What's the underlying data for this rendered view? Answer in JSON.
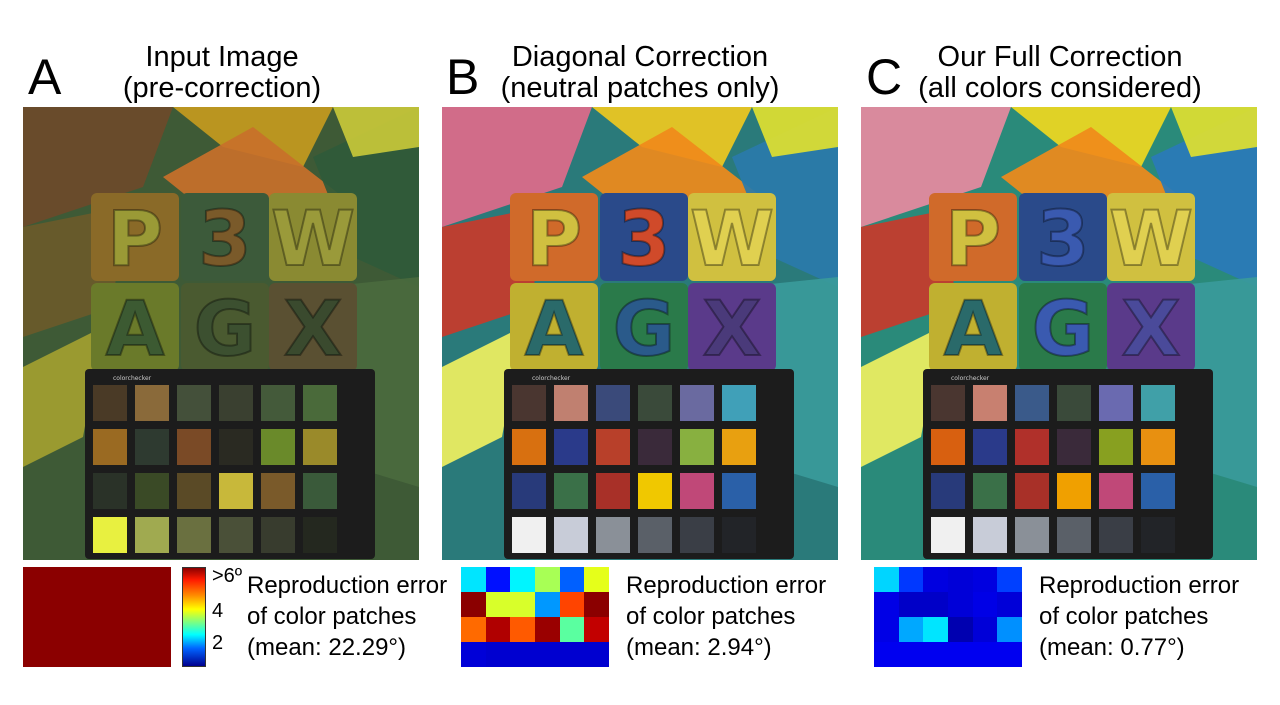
{
  "panels": [
    {
      "letter": "A",
      "title_line1": "Input Image",
      "title_line2": "(pre-correction)",
      "caption_line1": "Reproduction error",
      "caption_line2": "of color patches",
      "caption_line3": "(mean: 22.29°)",
      "error_cells": [
        "#8b0000",
        "#8b0000",
        "#8b0000",
        "#8b0000",
        "#8b0000",
        "#8b0000",
        "#8b0000",
        "#8b0000",
        "#8b0000",
        "#8b0000",
        "#8b0000",
        "#8b0000",
        "#8b0000",
        "#8b0000",
        "#8b0000",
        "#8b0000",
        "#8b0000",
        "#8b0000",
        "#8b0000",
        "#8b0000",
        "#8b0000",
        "#8b0000",
        "#8b0000",
        "#8b0000"
      ]
    },
    {
      "letter": "B",
      "title_line1": "Diagonal Correction",
      "title_line2": "(neutral patches only)",
      "caption_line1": "Reproduction error",
      "caption_line2": "of color patches",
      "caption_line3": "(mean: 2.94°)",
      "error_cells": [
        "#00e5ff",
        "#0010ff",
        "#00f5ff",
        "#a8ff55",
        "#0060ff",
        "#e5ff1a",
        "#8b0000",
        "#d8ff2a",
        "#d8ff2a",
        "#0098ff",
        "#ff4400",
        "#8b0000",
        "#ff6a00",
        "#b00000",
        "#ff5a00",
        "#9a0000",
        "#5affa0",
        "#c20000",
        "#0000d8",
        "#0000d0",
        "#0000d0",
        "#0000d0",
        "#0000d0",
        "#0000d0"
      ]
    },
    {
      "letter": "C",
      "title_line1": "Our Full Correction",
      "title_line2": "(all colors considered)",
      "caption_line1": "Reproduction error",
      "caption_line2": "of color patches",
      "caption_line3": "(mean: 0.77°)",
      "error_cells": [
        "#00d5ff",
        "#0038ff",
        "#0000e0",
        "#0000d8",
        "#0000e0",
        "#0040ff",
        "#0000e6",
        "#0000c8",
        "#0000c8",
        "#0000d8",
        "#0000e6",
        "#0000d8",
        "#0000e6",
        "#00a8ff",
        "#00e5ff",
        "#0000b0",
        "#0000d8",
        "#0090ff",
        "#0000f0",
        "#0000f0",
        "#0000f0",
        "#0000f0",
        "#0000f0",
        "#0000f0"
      ]
    }
  ],
  "colorbar": {
    "top_label": ">6º",
    "mid_label": "4",
    "low_label": "2",
    "colors": [
      "#8b0000",
      "#ff1a00",
      "#ff8c00",
      "#ffff00",
      "#7fff7f",
      "#00ffff",
      "#0064ff",
      "#00008f"
    ]
  },
  "scene": {
    "puzzle_letters": [
      "P",
      "3",
      "W",
      "A",
      "G",
      "X"
    ],
    "checker_brand": "colorchecker",
    "icons": [
      "photo-scene",
      "color-checker-chart"
    ]
  }
}
